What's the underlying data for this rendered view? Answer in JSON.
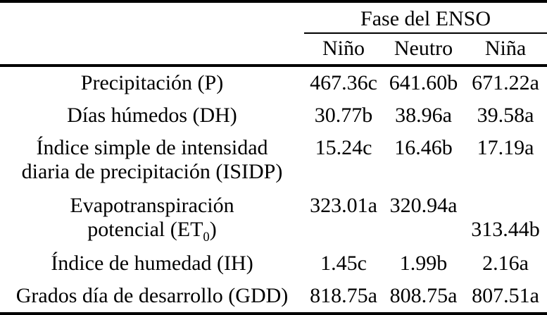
{
  "table": {
    "header": {
      "group": "Fase del ENSO",
      "columns": [
        "Niño",
        "Neutro",
        "Niña"
      ]
    },
    "rows": [
      {
        "label": "Precipitación (P)",
        "nino": "467.36c",
        "neutro": "641.60b",
        "nina": "671.22a"
      },
      {
        "label": "Días húmedos (DH)",
        "nino": "30.77b",
        "neutro": "38.96a",
        "nina": "39.58a"
      },
      {
        "label_line1": "Índice simple de intensidad",
        "label_line2": "diaria de precipitación (ISIDP)",
        "nino": "15.24c",
        "neutro": "16.46b",
        "nina": "17.19a"
      },
      {
        "label_line1": "Evapotranspiración",
        "label_line2_pre": "potencial (ET",
        "label_line2_sub": "0",
        "label_line2_post": ")",
        "nino": "323.01a",
        "neutro": "320.94a",
        "nina": "313.44b"
      },
      {
        "label": "Índice de humedad (IH)",
        "nino": "1.45c",
        "neutro": "1.99b",
        "nina": "2.16a"
      },
      {
        "label": "Grados día de desarrollo (GDD)",
        "nino": "818.75a",
        "neutro": "808.75a",
        "nina": "807.51a"
      }
    ],
    "colors": {
      "text": "#000000",
      "background": "#ffffff",
      "rule": "#000000"
    }
  }
}
